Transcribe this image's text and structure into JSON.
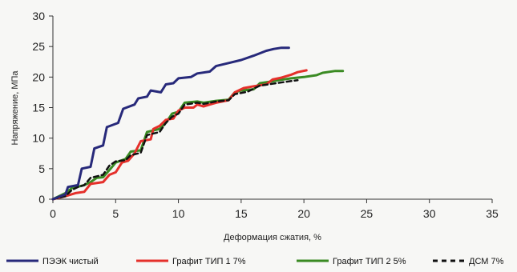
{
  "chart_data": {
    "type": "line",
    "title": "",
    "xlabel": "Деформация сжатия, %",
    "ylabel": "Напряжение, МПа",
    "xlim": [
      0,
      35
    ],
    "ylim": [
      0,
      30
    ],
    "x_ticks": [
      "0",
      "5",
      "10",
      "15",
      "20",
      "25",
      "30",
      "35"
    ],
    "y_ticks": [
      "0",
      "5",
      "10",
      "15",
      "20",
      "25",
      "30"
    ],
    "grid": false,
    "legend_position": "bottom",
    "series": [
      {
        "name": "ПЭЭК чистый",
        "color": "#27297a",
        "style": "solid",
        "points": [
          [
            0,
            0
          ],
          [
            0.5,
            0.4
          ],
          [
            1,
            0.8
          ],
          [
            1.2,
            2
          ],
          [
            2,
            2.3
          ],
          [
            2.3,
            5
          ],
          [
            3,
            5.3
          ],
          [
            3.3,
            8.3
          ],
          [
            4,
            8.8
          ],
          [
            4.3,
            11.8
          ],
          [
            5.2,
            12.5
          ],
          [
            5.6,
            14.8
          ],
          [
            6.5,
            15.5
          ],
          [
            6.8,
            16.5
          ],
          [
            7.5,
            16.8
          ],
          [
            7.8,
            17.8
          ],
          [
            8.6,
            17.5
          ],
          [
            9,
            18.8
          ],
          [
            9.6,
            19
          ],
          [
            10,
            19.8
          ],
          [
            11,
            20
          ],
          [
            11.5,
            20.6
          ],
          [
            12.5,
            20.9
          ],
          [
            13,
            21.8
          ],
          [
            14,
            22.3
          ],
          [
            15,
            22.8
          ],
          [
            16,
            23.5
          ],
          [
            17,
            24.3
          ],
          [
            17.6,
            24.6
          ],
          [
            18.2,
            24.8
          ],
          [
            18.8,
            24.8
          ]
        ]
      },
      {
        "name": "Графит ТИП 1 7%",
        "color": "#e5302b",
        "style": "solid",
        "points": [
          [
            0,
            0
          ],
          [
            1,
            0.5
          ],
          [
            1.8,
            1
          ],
          [
            2.5,
            1.2
          ],
          [
            3,
            2.5
          ],
          [
            4,
            2.8
          ],
          [
            4.5,
            4
          ],
          [
            5,
            4.4
          ],
          [
            5.5,
            6
          ],
          [
            6,
            6.3
          ],
          [
            6.5,
            7.5
          ],
          [
            7,
            9.5
          ],
          [
            7.8,
            9.8
          ],
          [
            8,
            11.5
          ],
          [
            8.5,
            12
          ],
          [
            9,
            13
          ],
          [
            9.6,
            13.2
          ],
          [
            10,
            14.5
          ],
          [
            10.5,
            15
          ],
          [
            11.2,
            15
          ],
          [
            11.5,
            15.5
          ],
          [
            12,
            15.2
          ],
          [
            12.5,
            15.5
          ],
          [
            13,
            15.8
          ],
          [
            14,
            16.2
          ],
          [
            14.5,
            17.5
          ],
          [
            15.2,
            18.2
          ],
          [
            16,
            18.5
          ],
          [
            17,
            18.8
          ],
          [
            17.5,
            19.6
          ],
          [
            18.2,
            19.9
          ],
          [
            19,
            20.4
          ],
          [
            19.5,
            20.8
          ],
          [
            20.2,
            21.1
          ]
        ]
      },
      {
        "name": "Графит ТИП 2 5%",
        "color": "#3a8a22",
        "style": "solid",
        "points": [
          [
            0,
            0
          ],
          [
            1,
            1
          ],
          [
            1.5,
            1.8
          ],
          [
            2.5,
            2.3
          ],
          [
            3,
            2.8
          ],
          [
            3.5,
            3.5
          ],
          [
            4,
            3.6
          ],
          [
            4.6,
            5
          ],
          [
            5,
            6
          ],
          [
            5.8,
            6.6
          ],
          [
            6.2,
            7.8
          ],
          [
            7,
            8
          ],
          [
            7.5,
            11
          ],
          [
            8.5,
            11.5
          ],
          [
            9,
            12.5
          ],
          [
            9.5,
            14
          ],
          [
            10,
            14.3
          ],
          [
            10.5,
            15.8
          ],
          [
            11.5,
            16
          ],
          [
            12,
            15.8
          ],
          [
            13,
            16.1
          ],
          [
            14,
            16.3
          ],
          [
            14.5,
            17.5
          ],
          [
            15,
            17.8
          ],
          [
            16,
            18
          ],
          [
            16.5,
            19
          ],
          [
            17.5,
            19.3
          ],
          [
            18,
            19.5
          ],
          [
            19,
            19.8
          ],
          [
            20,
            20
          ],
          [
            21,
            20.3
          ],
          [
            21.5,
            20.7
          ],
          [
            22.5,
            21
          ],
          [
            23.1,
            21
          ]
        ]
      },
      {
        "name": "ДСМ 7%",
        "color": "#111111",
        "style": "dashed",
        "points": [
          [
            0,
            0
          ],
          [
            1,
            0.5
          ],
          [
            1.5,
            1.5
          ],
          [
            2,
            2
          ],
          [
            2.5,
            2.3
          ],
          [
            3,
            3.5
          ],
          [
            4,
            4
          ],
          [
            4.5,
            5.5
          ],
          [
            5,
            6.2
          ],
          [
            5.8,
            6.4
          ],
          [
            6.2,
            7.2
          ],
          [
            7,
            7.6
          ],
          [
            7.5,
            10.5
          ],
          [
            8.5,
            11
          ],
          [
            9,
            12.5
          ],
          [
            9.5,
            13.5
          ],
          [
            10,
            14
          ],
          [
            10.5,
            15.5
          ],
          [
            11.5,
            15.8
          ],
          [
            12,
            15.6
          ],
          [
            13,
            16
          ],
          [
            14,
            16.2
          ],
          [
            14.5,
            17.2
          ],
          [
            15.5,
            17.6
          ],
          [
            16.5,
            18.6
          ],
          [
            17.5,
            18.9
          ],
          [
            18.5,
            19.2
          ],
          [
            19.5,
            19.5
          ]
        ]
      }
    ]
  }
}
